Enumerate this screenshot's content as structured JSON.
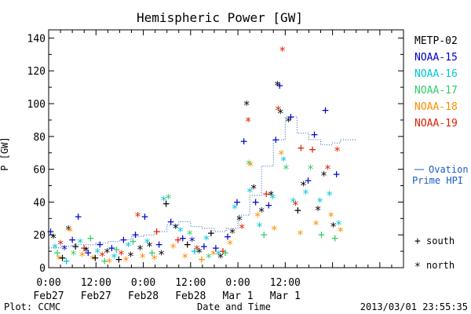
{
  "chart_data": {
    "type": "scatter",
    "title": "Hemispheric Power [GW]",
    "xlabel": "Date and Time",
    "ylabel": "P [GW]",
    "x_unit": "hours since 0:00 Feb27",
    "xlim": [
      0,
      90
    ],
    "ylim": [
      0,
      145
    ],
    "yticks": [
      0,
      20,
      40,
      60,
      80,
      100,
      120,
      140
    ],
    "xticks": [
      {
        "x": 0,
        "label1": "0:00",
        "label2": "Feb27"
      },
      {
        "x": 12,
        "label1": "12:00",
        "label2": "Feb27"
      },
      {
        "x": 24,
        "label1": "0:00",
        "label2": "Feb28"
      },
      {
        "x": 36,
        "label1": "12:00",
        "label2": "Feb28"
      },
      {
        "x": 48,
        "label1": "0:00",
        "label2": "Mar 1"
      },
      {
        "x": 60,
        "label1": "12:00",
        "label2": "Mar 1"
      }
    ],
    "series": [
      {
        "name": "METP-02",
        "color": "#000000"
      },
      {
        "name": "NOAA-15",
        "color": "#0000cc"
      },
      {
        "name": "NOAA-16",
        "color": "#00c8d8"
      },
      {
        "name": "NOAA-17",
        "color": "#33cc66"
      },
      {
        "name": "NOAA-18",
        "color": "#ff8c00"
      },
      {
        "name": "NOAA-19",
        "color": "#e02000"
      }
    ],
    "ovation": {
      "label_line1": "Ovation",
      "label_line2": "Prime HPI",
      "color": "#1a5cc8",
      "points": [
        [
          0,
          12
        ],
        [
          3,
          13
        ],
        [
          6,
          14
        ],
        [
          9,
          14
        ],
        [
          12,
          15
        ],
        [
          15,
          16
        ],
        [
          18,
          17
        ],
        [
          21,
          19
        ],
        [
          24,
          20
        ],
        [
          27,
          22
        ],
        [
          30,
          26
        ],
        [
          33,
          28
        ],
        [
          36,
          25
        ],
        [
          39,
          24
        ],
        [
          42,
          22
        ],
        [
          45,
          24
        ],
        [
          48,
          32
        ],
        [
          51,
          44
        ],
        [
          54,
          62
        ],
        [
          57,
          78
        ],
        [
          60,
          92
        ],
        [
          63,
          82
        ],
        [
          66,
          78
        ],
        [
          69,
          75
        ],
        [
          72,
          76
        ],
        [
          74,
          78
        ],
        [
          76,
          78
        ],
        [
          78,
          78
        ]
      ]
    },
    "symbols": {
      "south": "+",
      "north": "*"
    },
    "points": [
      {
        "s": 1,
        "x": 0.5,
        "y": 22,
        "m": "+"
      },
      {
        "s": 0,
        "x": 1.2,
        "y": 18,
        "m": "*"
      },
      {
        "s": 2,
        "x": 1.6,
        "y": 12,
        "m": "*"
      },
      {
        "s": 3,
        "x": 2.2,
        "y": 9,
        "m": "+"
      },
      {
        "s": 4,
        "x": 2.6,
        "y": 5,
        "m": "*"
      },
      {
        "s": 5,
        "x": 3.0,
        "y": 14,
        "m": "*"
      },
      {
        "s": 0,
        "x": 3.5,
        "y": 6,
        "m": "+"
      },
      {
        "s": 1,
        "x": 4.0,
        "y": 11,
        "m": "*"
      },
      {
        "s": 2,
        "x": 4.5,
        "y": 4,
        "m": "+"
      },
      {
        "s": 0,
        "x": 5.0,
        "y": 23,
        "m": "*"
      },
      {
        "s": 4,
        "x": 5.4,
        "y": 22,
        "m": "*"
      },
      {
        "s": 1,
        "x": 6.0,
        "y": 17,
        "m": "+"
      },
      {
        "s": 3,
        "x": 6.3,
        "y": 8,
        "m": "*"
      },
      {
        "s": 0,
        "x": 6.8,
        "y": 13,
        "m": "+"
      },
      {
        "s": 1,
        "x": 7.5,
        "y": 31,
        "m": "+"
      },
      {
        "s": 2,
        "x": 8.0,
        "y": 15,
        "m": "*"
      },
      {
        "s": 4,
        "x": 8.5,
        "y": 7,
        "m": "*"
      },
      {
        "s": 5,
        "x": 9.0,
        "y": 12,
        "m": "+"
      },
      {
        "s": 0,
        "x": 9.5,
        "y": 10,
        "m": "*"
      },
      {
        "s": 1,
        "x": 10.0,
        "y": 9,
        "m": "+"
      },
      {
        "s": 3,
        "x": 10.6,
        "y": 18,
        "m": "+"
      },
      {
        "s": 4,
        "x": 11.2,
        "y": 5,
        "m": "*"
      },
      {
        "s": 0,
        "x": 11.8,
        "y": 6,
        "m": "+"
      },
      {
        "s": 2,
        "x": 12.4,
        "y": 9,
        "m": "*"
      },
      {
        "s": 1,
        "x": 13.0,
        "y": 14,
        "m": "+"
      },
      {
        "s": 5,
        "x": 13.6,
        "y": 7,
        "m": "*"
      },
      {
        "s": 3,
        "x": 14.2,
        "y": 4,
        "m": "+"
      },
      {
        "s": 0,
        "x": 14.8,
        "y": 9,
        "m": "*"
      },
      {
        "s": 4,
        "x": 15.4,
        "y": 3,
        "m": "*"
      },
      {
        "s": 1,
        "x": 16.0,
        "y": 12,
        "m": "+"
      },
      {
        "s": 2,
        "x": 16.6,
        "y": 6,
        "m": "*"
      },
      {
        "s": 3,
        "x": 17.2,
        "y": 11,
        "m": "+"
      },
      {
        "s": 0,
        "x": 17.8,
        "y": 5,
        "m": "+"
      },
      {
        "s": 5,
        "x": 18.4,
        "y": 8,
        "m": "*"
      },
      {
        "s": 1,
        "x": 19.0,
        "y": 17,
        "m": "+"
      },
      {
        "s": 4,
        "x": 19.6,
        "y": 4,
        "m": "*"
      },
      {
        "s": 2,
        "x": 20.2,
        "y": 13,
        "m": "*"
      },
      {
        "s": 0,
        "x": 20.8,
        "y": 7,
        "m": "*"
      },
      {
        "s": 3,
        "x": 21.4,
        "y": 16,
        "m": "+"
      },
      {
        "s": 1,
        "x": 22.0,
        "y": 20,
        "m": "+"
      },
      {
        "s": 5,
        "x": 22.6,
        "y": 31,
        "m": "*"
      },
      {
        "s": 0,
        "x": 23.2,
        "y": 11,
        "m": "*"
      },
      {
        "s": 4,
        "x": 23.8,
        "y": 6,
        "m": "*"
      },
      {
        "s": 1,
        "x": 24.4,
        "y": 31,
        "m": "+"
      },
      {
        "s": 2,
        "x": 25.0,
        "y": 15,
        "m": "*"
      },
      {
        "s": 0,
        "x": 25.6,
        "y": 13,
        "m": "*"
      },
      {
        "s": 3,
        "x": 26.2,
        "y": 9,
        "m": "+"
      },
      {
        "s": 4,
        "x": 26.8,
        "y": 5,
        "m": "*"
      },
      {
        "s": 5,
        "x": 27.4,
        "y": 22,
        "m": "+"
      },
      {
        "s": 1,
        "x": 28.0,
        "y": 14,
        "m": "+"
      },
      {
        "s": 0,
        "x": 28.6,
        "y": 8,
        "m": "*"
      },
      {
        "s": 2,
        "x": 29.2,
        "y": 41,
        "m": "*"
      },
      {
        "s": 0,
        "x": 29.8,
        "y": 39,
        "m": "+"
      },
      {
        "s": 3,
        "x": 30.4,
        "y": 42,
        "m": "*"
      },
      {
        "s": 1,
        "x": 31.0,
        "y": 28,
        "m": "+"
      },
      {
        "s": 4,
        "x": 31.6,
        "y": 12,
        "m": "*"
      },
      {
        "s": 0,
        "x": 32.2,
        "y": 24,
        "m": "*"
      },
      {
        "s": 5,
        "x": 32.8,
        "y": 17,
        "m": "+"
      },
      {
        "s": 2,
        "x": 33.4,
        "y": 22,
        "m": "*"
      },
      {
        "s": 1,
        "x": 34.0,
        "y": 18,
        "m": "+"
      },
      {
        "s": 4,
        "x": 34.6,
        "y": 6,
        "m": "*"
      },
      {
        "s": 0,
        "x": 35.2,
        "y": 14,
        "m": "+"
      },
      {
        "s": 3,
        "x": 35.8,
        "y": 20,
        "m": "*"
      },
      {
        "s": 1,
        "x": 36.4,
        "y": 16,
        "m": "*"
      },
      {
        "s": 2,
        "x": 37.0,
        "y": 10,
        "m": "+"
      },
      {
        "s": 5,
        "x": 37.6,
        "y": 11,
        "m": "*"
      },
      {
        "s": 0,
        "x": 38.2,
        "y": 9,
        "m": "*"
      },
      {
        "s": 4,
        "x": 38.8,
        "y": 5,
        "m": "+"
      },
      {
        "s": 1,
        "x": 39.4,
        "y": 13,
        "m": "+"
      },
      {
        "s": 2,
        "x": 40.0,
        "y": 17,
        "m": "*"
      },
      {
        "s": 3,
        "x": 40.6,
        "y": 6,
        "m": "*"
      },
      {
        "s": 0,
        "x": 41.2,
        "y": 21,
        "m": "+"
      },
      {
        "s": 4,
        "x": 41.8,
        "y": 8,
        "m": "*"
      },
      {
        "s": 1,
        "x": 42.4,
        "y": 12,
        "m": "+"
      },
      {
        "s": 2,
        "x": 43.0,
        "y": 8,
        "m": "*"
      },
      {
        "s": 0,
        "x": 43.6,
        "y": 6,
        "m": "*"
      },
      {
        "s": 5,
        "x": 44.2,
        "y": 10,
        "m": "+"
      },
      {
        "s": 3,
        "x": 44.8,
        "y": 9,
        "m": "+"
      },
      {
        "s": 1,
        "x": 45.4,
        "y": 19,
        "m": "+"
      },
      {
        "s": 4,
        "x": 46.0,
        "y": 14,
        "m": "*"
      },
      {
        "s": 0,
        "x": 46.6,
        "y": 21,
        "m": "*"
      },
      {
        "s": 2,
        "x": 47.2,
        "y": 36,
        "m": "*"
      },
      {
        "s": 1,
        "x": 47.8,
        "y": 40,
        "m": "+"
      },
      {
        "s": 0,
        "x": 48.4,
        "y": 29,
        "m": "*"
      },
      {
        "s": 5,
        "x": 49.0,
        "y": 24,
        "m": "*"
      },
      {
        "s": 1,
        "x": 49.5,
        "y": 77,
        "m": "+"
      },
      {
        "s": 0,
        "x": 50.2,
        "y": 99,
        "m": "*"
      },
      {
        "s": 5,
        "x": 50.6,
        "y": 89,
        "m": "*"
      },
      {
        "s": 3,
        "x": 50.8,
        "y": 63,
        "m": "*"
      },
      {
        "s": 4,
        "x": 51.2,
        "y": 62,
        "m": "*"
      },
      {
        "s": 2,
        "x": 51.0,
        "y": 46,
        "m": "*"
      },
      {
        "s": 0,
        "x": 52.0,
        "y": 48,
        "m": "*"
      },
      {
        "s": 1,
        "x": 52.5,
        "y": 40,
        "m": "+"
      },
      {
        "s": 4,
        "x": 53.0,
        "y": 31,
        "m": "*"
      },
      {
        "s": 2,
        "x": 53.5,
        "y": 25,
        "m": "*"
      },
      {
        "s": 0,
        "x": 54.0,
        "y": 34,
        "m": "*"
      },
      {
        "s": 3,
        "x": 54.6,
        "y": 20,
        "m": "+"
      },
      {
        "s": 5,
        "x": 55.2,
        "y": 45,
        "m": "+"
      },
      {
        "s": 1,
        "x": 55.8,
        "y": 38,
        "m": "+"
      },
      {
        "s": 0,
        "x": 56.4,
        "y": 44,
        "m": "*"
      },
      {
        "s": 2,
        "x": 56.8,
        "y": 42,
        "m": "*"
      },
      {
        "s": 4,
        "x": 57.2,
        "y": 23,
        "m": "*"
      },
      {
        "s": 1,
        "x": 57.6,
        "y": 78,
        "m": "+"
      },
      {
        "s": 0,
        "x": 58.0,
        "y": 111,
        "m": "*"
      },
      {
        "s": 1,
        "x": 58.6,
        "y": 111,
        "m": "+"
      },
      {
        "s": 5,
        "x": 58.2,
        "y": 96,
        "m": "*"
      },
      {
        "s": 0,
        "x": 58.8,
        "y": 94,
        "m": "*"
      },
      {
        "s": 5,
        "x": 59.3,
        "y": 132,
        "m": "*"
      },
      {
        "s": 4,
        "x": 59.0,
        "y": 69,
        "m": "*"
      },
      {
        "s": 2,
        "x": 59.6,
        "y": 65,
        "m": "*"
      },
      {
        "s": 3,
        "x": 60.2,
        "y": 60,
        "m": "*"
      },
      {
        "s": 0,
        "x": 60.8,
        "y": 89,
        "m": "*"
      },
      {
        "s": 1,
        "x": 61.4,
        "y": 92,
        "m": "+"
      },
      {
        "s": 2,
        "x": 62.0,
        "y": 40,
        "m": "*"
      },
      {
        "s": 5,
        "x": 62.6,
        "y": 38,
        "m": "*"
      },
      {
        "s": 0,
        "x": 63.2,
        "y": 35,
        "m": "+"
      },
      {
        "s": 4,
        "x": 63.8,
        "y": 20,
        "m": "*"
      },
      {
        "s": 5,
        "x": 64.0,
        "y": 73,
        "m": "+"
      },
      {
        "s": 0,
        "x": 64.6,
        "y": 50,
        "m": "*"
      },
      {
        "s": 2,
        "x": 65.2,
        "y": 45,
        "m": "*"
      },
      {
        "s": 1,
        "x": 65.8,
        "y": 53,
        "m": "+"
      },
      {
        "s": 3,
        "x": 66.4,
        "y": 60,
        "m": "*"
      },
      {
        "s": 5,
        "x": 66.9,
        "y": 72,
        "m": "+"
      },
      {
        "s": 1,
        "x": 67.4,
        "y": 81,
        "m": "+"
      },
      {
        "s": 4,
        "x": 67.8,
        "y": 26,
        "m": "*"
      },
      {
        "s": 0,
        "x": 68.3,
        "y": 35,
        "m": "*"
      },
      {
        "s": 2,
        "x": 68.8,
        "y": 40,
        "m": "*"
      },
      {
        "s": 3,
        "x": 69.2,
        "y": 20,
        "m": "+"
      },
      {
        "s": 0,
        "x": 69.8,
        "y": 56,
        "m": "*"
      },
      {
        "s": 1,
        "x": 70.2,
        "y": 96,
        "m": "+"
      },
      {
        "s": 5,
        "x": 70.8,
        "y": 60,
        "m": "*"
      },
      {
        "s": 2,
        "x": 71.2,
        "y": 44,
        "m": "*"
      },
      {
        "s": 4,
        "x": 71.6,
        "y": 31,
        "m": "*"
      },
      {
        "s": 0,
        "x": 72.2,
        "y": 25,
        "m": "*"
      },
      {
        "s": 3,
        "x": 72.6,
        "y": 18,
        "m": "+"
      },
      {
        "s": 5,
        "x": 73.2,
        "y": 71,
        "m": "*"
      },
      {
        "s": 2,
        "x": 73.6,
        "y": 26,
        "m": "*"
      },
      {
        "s": 1,
        "x": 73.0,
        "y": 57,
        "m": "+"
      },
      {
        "s": 4,
        "x": 74.0,
        "y": 22,
        "m": "*"
      }
    ]
  },
  "footer": {
    "left": "Plot: CCMC",
    "right": "2013/03/01  23:55:35"
  }
}
